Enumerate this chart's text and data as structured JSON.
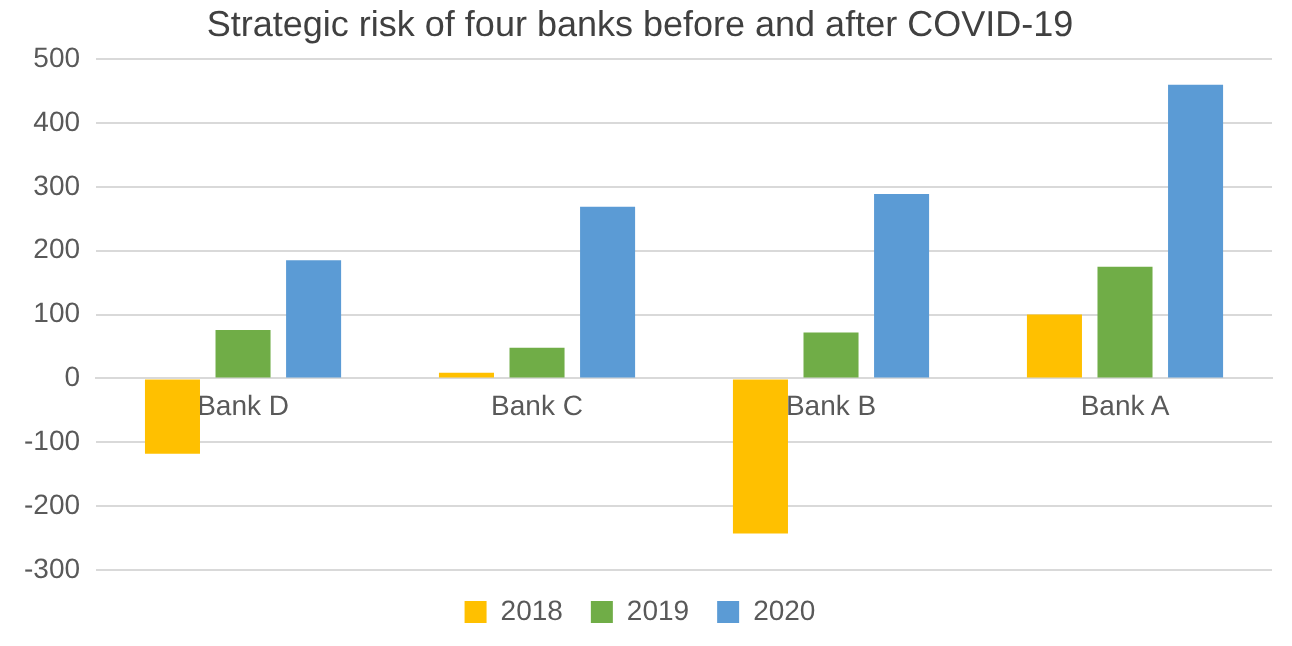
{
  "chart_data": {
    "type": "bar",
    "title": "Strategic risk of four banks before and after COVID-19",
    "categories": [
      "Bank D",
      "Bank C",
      "Bank B",
      "Bank A"
    ],
    "series": [
      {
        "name": "2018",
        "color": "#ffc000",
        "values": [
          -118,
          9,
          -243,
          100
        ]
      },
      {
        "name": "2019",
        "color": "#70ad47",
        "values": [
          76,
          48,
          72,
          175
        ]
      },
      {
        "name": "2020",
        "color": "#5b9bd5",
        "values": [
          185,
          269,
          289,
          460
        ]
      }
    ],
    "ylim": [
      -300,
      500
    ],
    "yticks": [
      -300,
      -200,
      -100,
      0,
      100,
      200,
      300,
      400,
      500
    ],
    "grid": "y",
    "legend": "bottom"
  }
}
